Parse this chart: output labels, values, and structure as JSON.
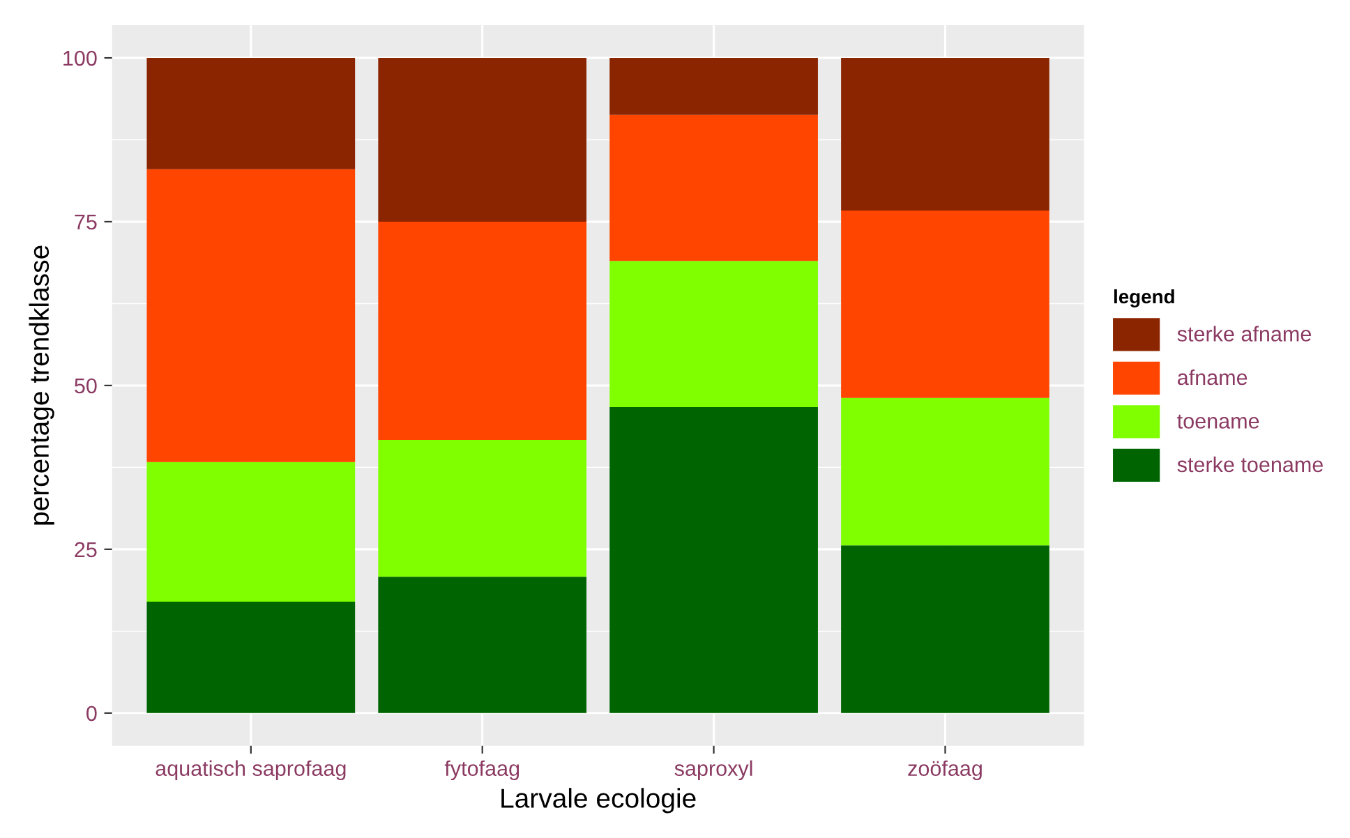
{
  "chart_data": {
    "type": "bar",
    "stacked": true,
    "xlabel": "Larvale ecologie",
    "ylabel": "percentage trendklasse",
    "legend_title": "legend",
    "legend": "right",
    "grid": true,
    "categories": [
      "aquatisch saprofaag",
      "fytofaag",
      "saproxyl",
      "zoöfaag"
    ],
    "series": [
      {
        "name": "sterke toename",
        "color": "#006400",
        "values": [
          17.0,
          20.8,
          46.7,
          25.6
        ]
      },
      {
        "name": "toename",
        "color": "#7fff00",
        "values": [
          21.3,
          20.9,
          22.3,
          22.5
        ]
      },
      {
        "name": "afname",
        "color": "#ff4500",
        "values": [
          44.7,
          33.3,
          22.3,
          28.6
        ]
      },
      {
        "name": "sterke afname",
        "color": "#8b2500",
        "values": [
          17.0,
          25.0,
          8.7,
          23.3
        ]
      }
    ],
    "ylim": [
      -5,
      105
    ],
    "yticks": [
      0,
      25,
      50,
      75,
      100
    ]
  }
}
